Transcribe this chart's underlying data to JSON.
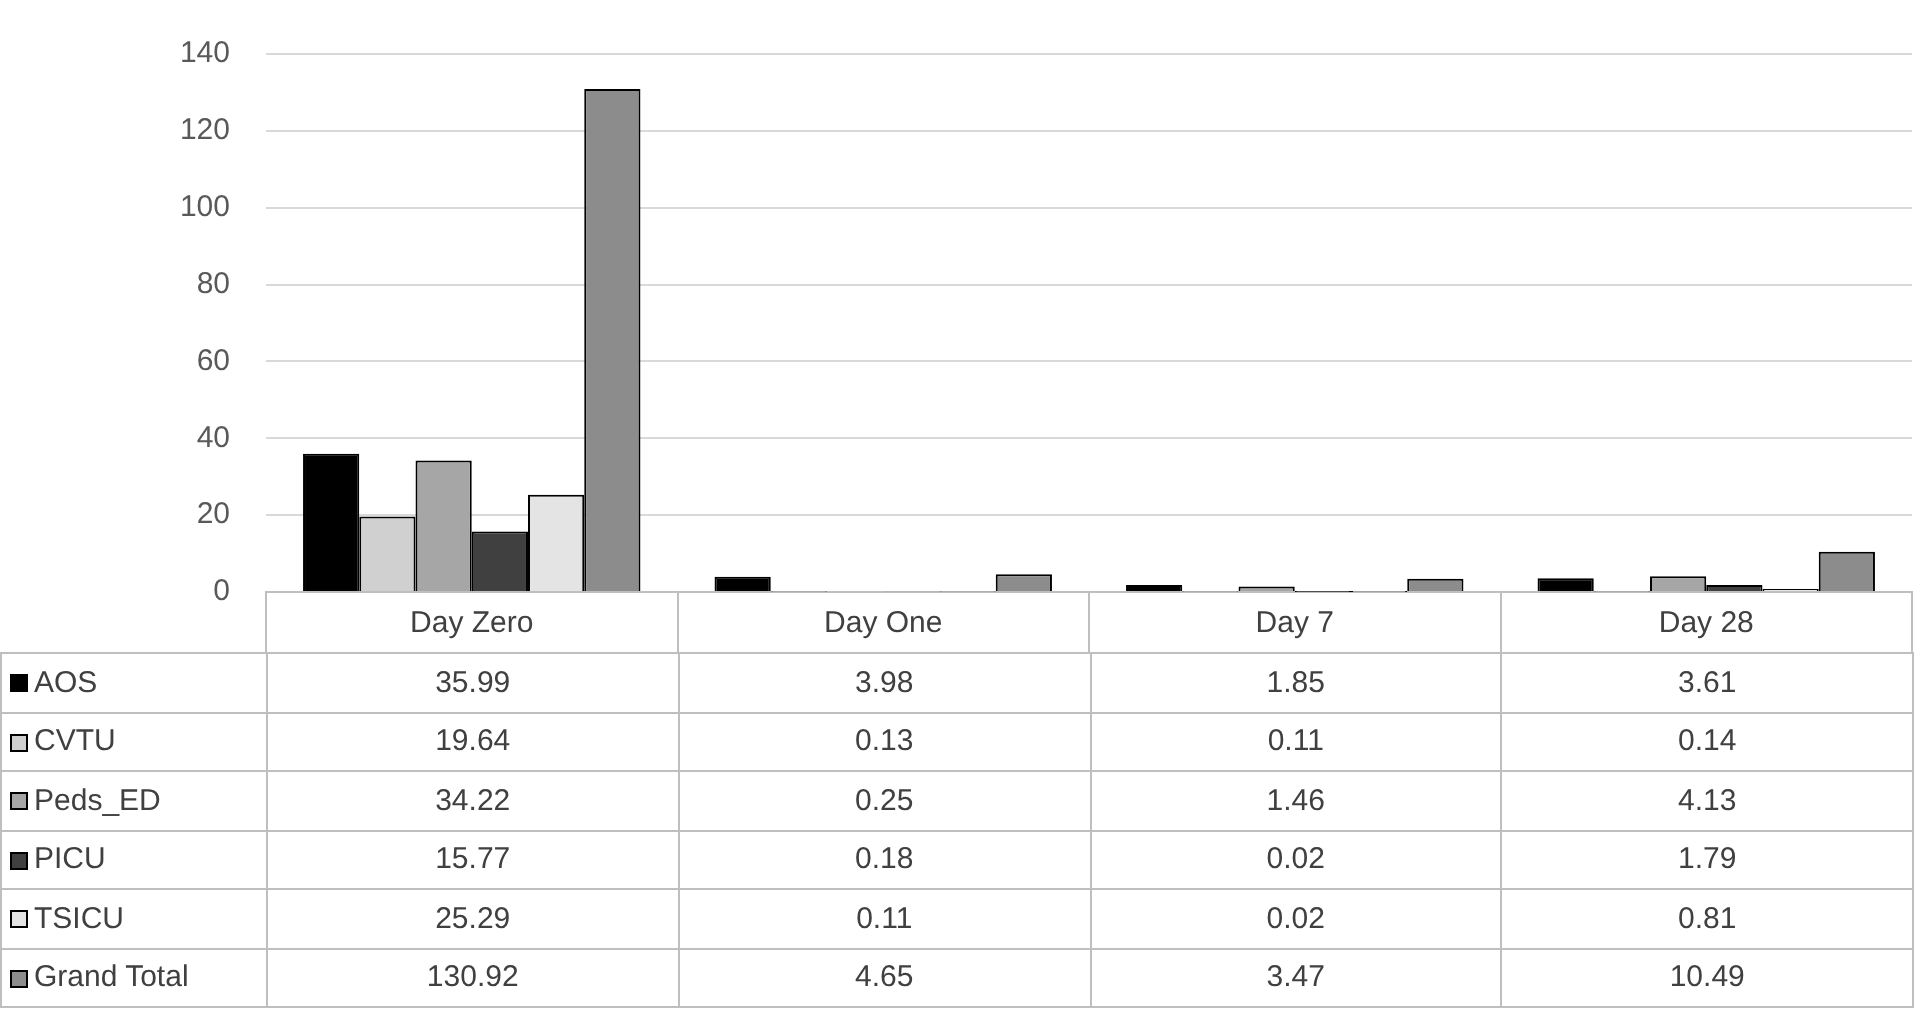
{
  "chart_data": {
    "type": "bar",
    "categories": [
      "Day Zero",
      "Day One",
      "Day 7",
      "Day 28"
    ],
    "series": [
      {
        "name": "AOS",
        "color": "#000000",
        "values": [
          35.99,
          3.98,
          1.85,
          3.61
        ]
      },
      {
        "name": "CVTU",
        "color": "#d0d0d0",
        "values": [
          19.64,
          0.13,
          0.11,
          0.14
        ]
      },
      {
        "name": "Peds_ED",
        "color": "#a6a6a6",
        "values": [
          34.22,
          0.25,
          1.46,
          4.13
        ]
      },
      {
        "name": "PICU",
        "color": "#404040",
        "values": [
          15.77,
          0.18,
          0.02,
          1.79
        ]
      },
      {
        "name": "TSICU",
        "color": "#e4e4e4",
        "values": [
          25.29,
          0.11,
          0.02,
          0.81
        ]
      },
      {
        "name": "Grand Total",
        "color": "#8c8c8c",
        "values": [
          130.92,
          4.65,
          3.47,
          10.49
        ]
      }
    ],
    "ylim": [
      0,
      140
    ],
    "yticks": [
      0,
      20,
      40,
      60,
      80,
      100,
      120,
      140
    ],
    "grid": "y",
    "legend": "bottom left",
    "data_labels": true
  }
}
